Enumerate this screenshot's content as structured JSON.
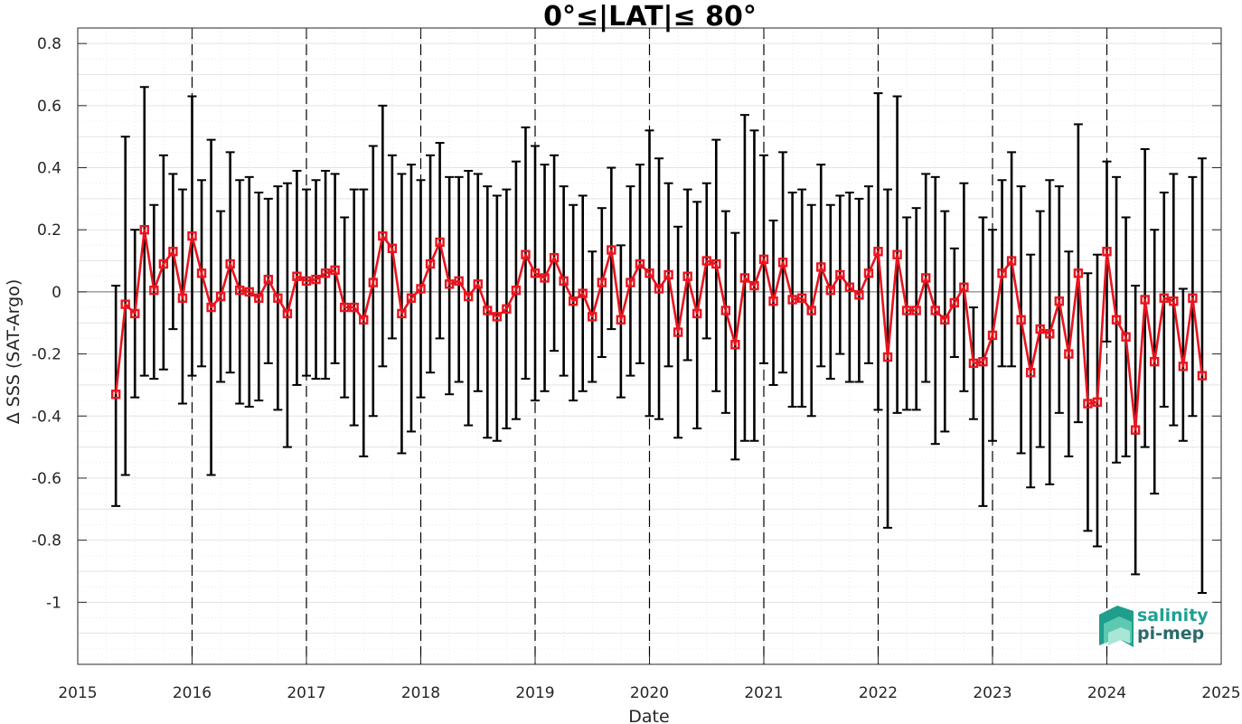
{
  "chart_data": {
    "type": "line",
    "title": "0°≤|LAT|≤ 80°",
    "xlabel": "Date",
    "ylabel": "Δ SSS (SAT-Argo)",
    "xlim": [
      "2015-01-01",
      "2025-01-01"
    ],
    "ylim": [
      -1.2,
      0.85
    ],
    "x_ticks": [
      {
        "date": "2015-01-01",
        "label": "2015"
      },
      {
        "date": "2016-01-01",
        "label": "2016"
      },
      {
        "date": "2017-01-01",
        "label": "2017"
      },
      {
        "date": "2018-01-01",
        "label": "2018"
      },
      {
        "date": "2019-01-01",
        "label": "2019"
      },
      {
        "date": "2020-01-01",
        "label": "2020"
      },
      {
        "date": "2021-01-01",
        "label": "2021"
      },
      {
        "date": "2022-01-01",
        "label": "2022"
      },
      {
        "date": "2023-01-01",
        "label": "2023"
      },
      {
        "date": "2024-01-01",
        "label": "2024"
      },
      {
        "date": "2025-01-01",
        "label": "2025"
      }
    ],
    "y_ticks": [
      {
        "value": 0.8,
        "label": "0.8"
      },
      {
        "value": 0.6,
        "label": "0.6"
      },
      {
        "value": 0.4,
        "label": "0.4"
      },
      {
        "value": 0.2,
        "label": "0.2"
      },
      {
        "value": 0,
        "label": "0"
      },
      {
        "value": -0.2,
        "label": "-0.2"
      },
      {
        "value": -0.4,
        "label": "-0.4"
      },
      {
        "value": -0.6,
        "label": "-0.6"
      },
      {
        "value": -0.8,
        "label": "-0.8"
      },
      {
        "value": -1,
        "label": "-1"
      }
    ],
    "grid": true,
    "year_separators": "dashed vertical lines at each January",
    "series": [
      {
        "color": "#e8141e",
        "marker": "square",
        "error_bar_color": "#000000",
        "x": [
          "2015-05",
          "2015-06",
          "2015-07",
          "2015-08",
          "2015-09",
          "2015-10",
          "2015-11",
          "2015-12",
          "2016-01",
          "2016-02",
          "2016-03",
          "2016-04",
          "2016-05",
          "2016-06",
          "2016-07",
          "2016-08",
          "2016-09",
          "2016-10",
          "2016-11",
          "2016-12",
          "2017-01",
          "2017-02",
          "2017-03",
          "2017-04",
          "2017-05",
          "2017-06",
          "2017-07",
          "2017-08",
          "2017-09",
          "2017-10",
          "2017-11",
          "2017-12",
          "2018-01",
          "2018-02",
          "2018-03",
          "2018-04",
          "2018-05",
          "2018-06",
          "2018-07",
          "2018-08",
          "2018-09",
          "2018-10",
          "2018-11",
          "2018-12",
          "2019-01",
          "2019-02",
          "2019-03",
          "2019-04",
          "2019-05",
          "2019-06",
          "2019-07",
          "2019-08",
          "2019-09",
          "2019-10",
          "2019-11",
          "2019-12",
          "2020-01",
          "2020-02",
          "2020-03",
          "2020-04",
          "2020-05",
          "2020-06",
          "2020-07",
          "2020-08",
          "2020-09",
          "2020-10",
          "2020-11",
          "2020-12",
          "2021-01",
          "2021-02",
          "2021-03",
          "2021-04",
          "2021-05",
          "2021-06",
          "2021-07",
          "2021-08",
          "2021-09",
          "2021-10",
          "2021-11",
          "2021-12",
          "2022-01",
          "2022-02",
          "2022-03",
          "2022-04",
          "2022-05",
          "2022-06",
          "2022-07",
          "2022-08",
          "2022-09",
          "2022-10",
          "2022-11",
          "2022-12",
          "2023-01",
          "2023-02",
          "2023-03",
          "2023-04",
          "2023-05",
          "2023-06",
          "2023-07",
          "2023-08",
          "2023-09",
          "2023-10",
          "2023-11",
          "2023-12",
          "2024-01",
          "2024-02",
          "2024-03",
          "2024-04",
          "2024-05",
          "2024-06",
          "2024-07",
          "2024-08",
          "2024-09",
          "2024-10",
          "2024-11"
        ],
        "y": [
          -0.33,
          -0.04,
          -0.07,
          0.2,
          0.005,
          0.09,
          0.13,
          -0.02,
          0.18,
          0.06,
          -0.05,
          -0.015,
          0.09,
          0.005,
          0.0,
          -0.02,
          0.04,
          -0.02,
          -0.07,
          0.05,
          0.035,
          0.04,
          0.06,
          0.07,
          -0.05,
          -0.05,
          -0.09,
          0.03,
          0.18,
          0.14,
          -0.07,
          -0.02,
          0.01,
          0.09,
          0.16,
          0.025,
          0.035,
          -0.015,
          0.025,
          -0.06,
          -0.08,
          -0.055,
          0.005,
          0.12,
          0.06,
          0.045,
          0.11,
          0.035,
          -0.03,
          -0.005,
          -0.08,
          0.03,
          0.135,
          -0.09,
          0.03,
          0.09,
          0.06,
          0.01,
          0.055,
          -0.13,
          0.05,
          -0.07,
          0.1,
          0.09,
          -0.06,
          -0.17,
          0.045,
          0.02,
          0.105,
          -0.03,
          0.095,
          -0.025,
          -0.02,
          -0.06,
          0.08,
          0.005,
          0.055,
          0.015,
          -0.01,
          0.06,
          0.13,
          -0.21,
          0.12,
          -0.06,
          -0.06,
          0.045,
          -0.06,
          -0.09,
          -0.035,
          0.015,
          -0.23,
          -0.225,
          -0.14,
          0.06,
          0.1,
          -0.09,
          -0.26,
          -0.12,
          -0.135,
          -0.03,
          -0.2,
          0.06,
          -0.36,
          -0.355,
          0.13,
          -0.09,
          -0.145,
          -0.445,
          -0.025,
          -0.225,
          -0.02,
          -0.03,
          -0.24,
          -0.02,
          -0.27
        ],
        "upper": [
          0.02,
          0.5,
          0.2,
          0.66,
          0.28,
          0.44,
          0.38,
          0.33,
          0.63,
          0.36,
          0.49,
          0.26,
          0.45,
          0.36,
          0.37,
          0.32,
          0.3,
          0.34,
          0.35,
          0.39,
          0.33,
          0.36,
          0.39,
          0.38,
          0.24,
          0.33,
          0.33,
          0.47,
          0.6,
          0.44,
          0.38,
          0.41,
          0.36,
          0.44,
          0.48,
          0.37,
          0.37,
          0.39,
          0.38,
          0.34,
          0.31,
          0.33,
          0.42,
          0.53,
          0.47,
          0.41,
          0.44,
          0.34,
          0.28,
          0.31,
          0.13,
          0.27,
          0.4,
          0.15,
          0.34,
          0.41,
          0.52,
          0.43,
          0.35,
          0.21,
          0.33,
          0.29,
          0.35,
          0.49,
          0.26,
          0.19,
          0.57,
          0.52,
          0.44,
          0.23,
          0.45,
          0.32,
          0.33,
          0.28,
          0.41,
          0.28,
          0.31,
          0.32,
          0.3,
          0.34,
          0.64,
          0.33,
          0.63,
          0.24,
          0.27,
          0.38,
          0.37,
          0.26,
          0.14,
          0.35,
          -0.05,
          0.24,
          0.2,
          0.36,
          0.45,
          0.34,
          0.12,
          0.26,
          0.36,
          0.34,
          0.13,
          0.54,
          0.06,
          0.12,
          0.42,
          0.37,
          0.24,
          0.02,
          0.46,
          0.2,
          0.32,
          0.38,
          0.01,
          0.37,
          0.43
        ],
        "lower": [
          -0.69,
          -0.59,
          -0.34,
          -0.27,
          -0.28,
          -0.25,
          -0.12,
          -0.36,
          -0.27,
          -0.24,
          -0.59,
          -0.29,
          -0.26,
          -0.36,
          -0.37,
          -0.35,
          -0.23,
          -0.38,
          -0.5,
          -0.3,
          -0.27,
          -0.28,
          -0.28,
          -0.23,
          -0.34,
          -0.43,
          -0.53,
          -0.4,
          -0.24,
          -0.15,
          -0.52,
          -0.45,
          -0.34,
          -0.26,
          -0.15,
          -0.33,
          -0.29,
          -0.43,
          -0.32,
          -0.47,
          -0.48,
          -0.44,
          -0.41,
          -0.28,
          -0.35,
          -0.32,
          -0.19,
          -0.27,
          -0.35,
          -0.32,
          -0.29,
          -0.21,
          -0.12,
          -0.34,
          -0.27,
          -0.23,
          -0.4,
          -0.41,
          -0.24,
          -0.47,
          -0.22,
          -0.44,
          -0.15,
          -0.32,
          -0.39,
          -0.54,
          -0.48,
          -0.48,
          -0.23,
          -0.3,
          -0.26,
          -0.37,
          -0.37,
          -0.4,
          -0.24,
          -0.28,
          -0.2,
          -0.29,
          -0.29,
          -0.23,
          -0.38,
          -0.76,
          -0.39,
          -0.38,
          -0.38,
          -0.29,
          -0.49,
          -0.45,
          -0.21,
          -0.32,
          -0.41,
          -0.69,
          -0.48,
          -0.24,
          -0.24,
          -0.52,
          -0.63,
          -0.5,
          -0.62,
          -0.39,
          -0.53,
          -0.42,
          -0.77,
          -0.82,
          -0.16,
          -0.55,
          -0.53,
          -0.91,
          -0.5,
          -0.65,
          -0.37,
          -0.43,
          -0.48,
          -0.4,
          -0.97
        ]
      }
    ]
  },
  "logo": {
    "line1": "salinity",
    "line2": "pi-mep"
  }
}
